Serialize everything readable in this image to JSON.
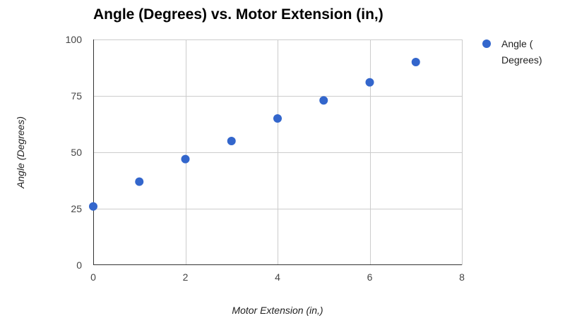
{
  "chart_data": {
    "type": "scatter",
    "title": "Angle (Degrees) vs. Motor Extension (in,)",
    "xlabel": "Motor Extension (in,)",
    "ylabel": "Angle (Degrees)",
    "xlim": [
      0,
      8
    ],
    "ylim": [
      0,
      100
    ],
    "x_ticks": [
      "0",
      "2",
      "4",
      "6",
      "8"
    ],
    "y_ticks": [
      "0",
      "25",
      "50",
      "75",
      "100"
    ],
    "grid": true,
    "legend_position": "right",
    "series": [
      {
        "name_lines": [
          "Angle (",
          "Degrees)"
        ],
        "color": "#3366cc",
        "x": [
          0,
          1,
          2,
          3,
          4,
          5,
          6,
          7
        ],
        "y": [
          26,
          37,
          47,
          55,
          65,
          73,
          81,
          90
        ]
      }
    ]
  }
}
